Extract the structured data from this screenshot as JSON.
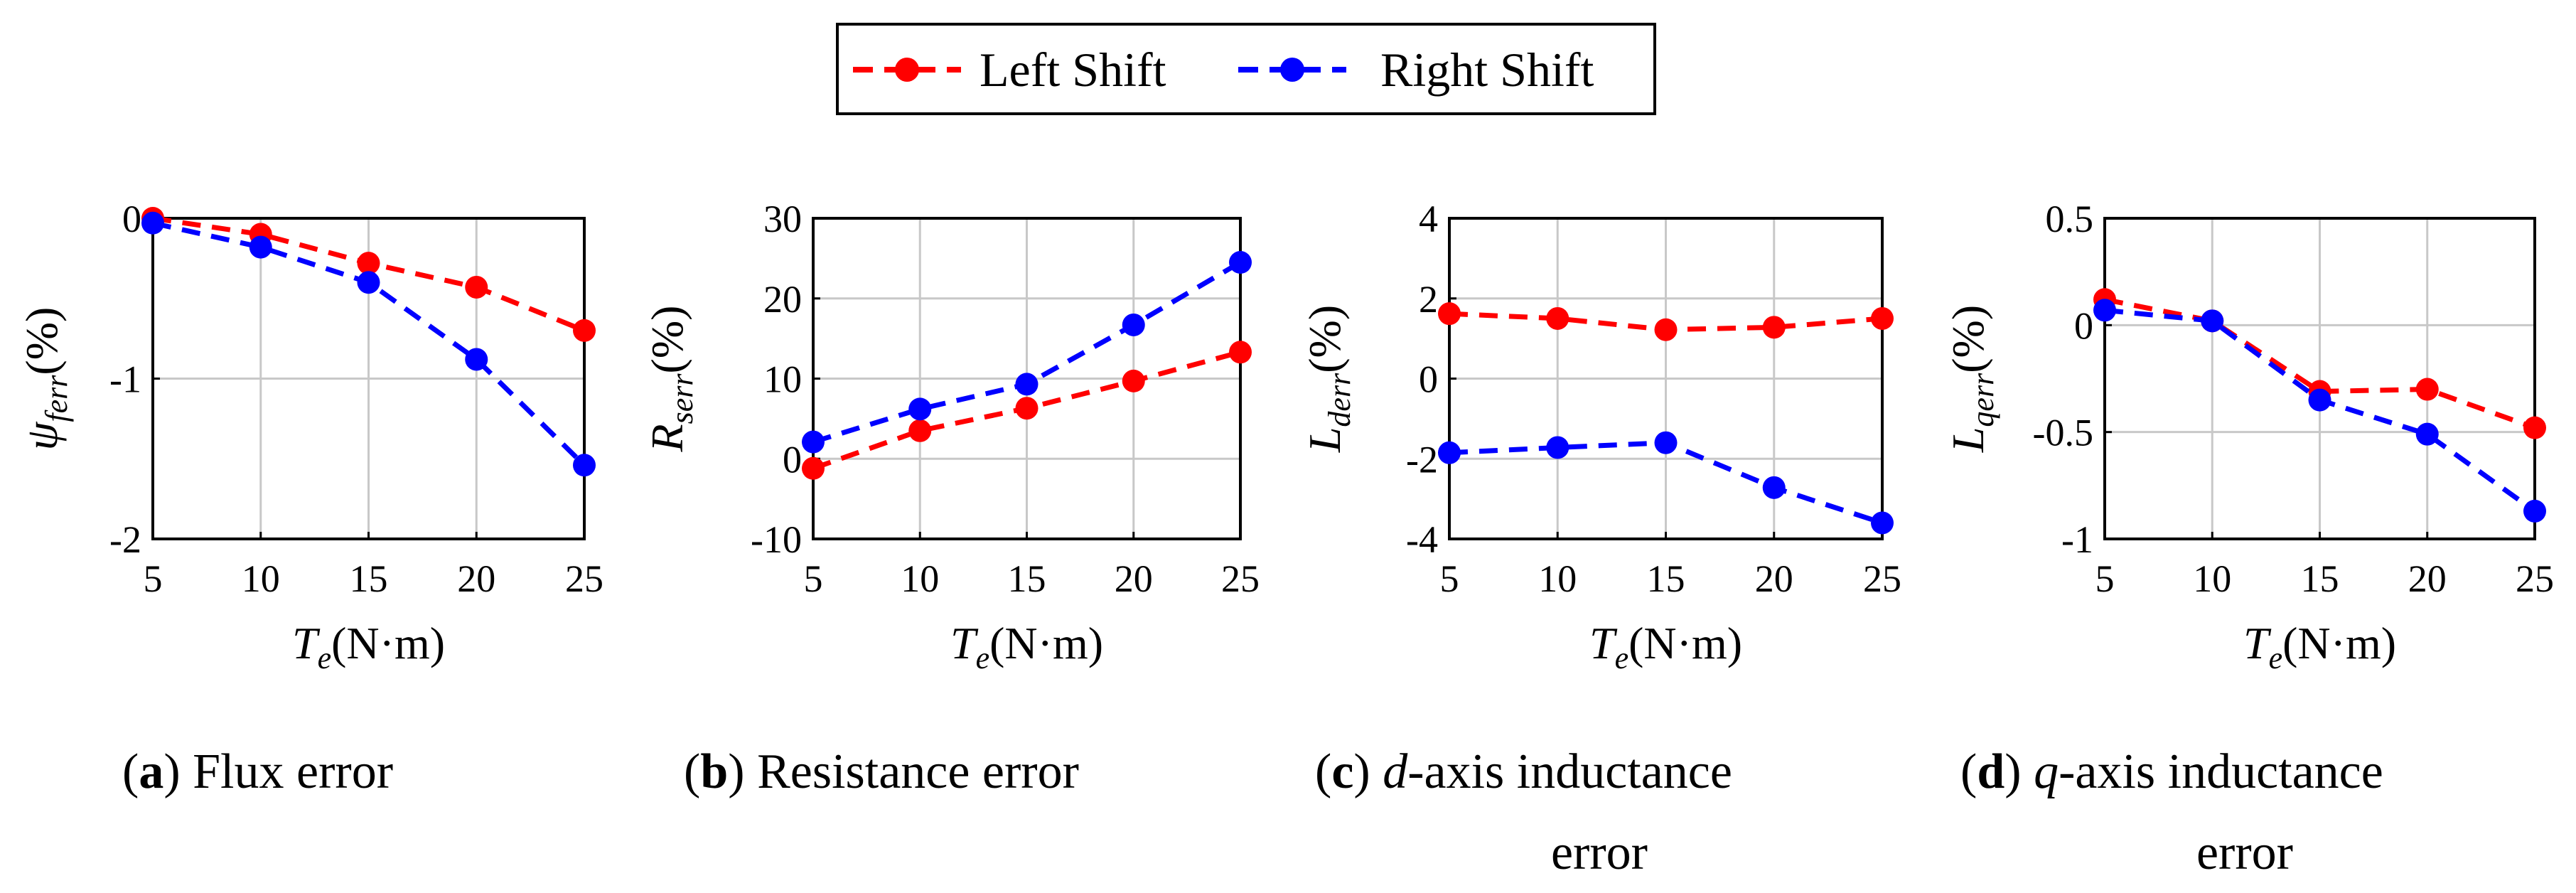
{
  "legend": {
    "entries": [
      {
        "label": "Left Shift",
        "color": "#ff0000"
      },
      {
        "label": "Right Shift",
        "color": "#0000ff"
      }
    ]
  },
  "chart_data": [
    {
      "type": "line",
      "id": "a",
      "x": [
        5,
        10,
        15,
        20,
        25
      ],
      "xticks": [
        5,
        10,
        15,
        20,
        25
      ],
      "xticklabels": [
        "5",
        "10",
        "15",
        "20",
        "25"
      ],
      "xlim": [
        5,
        25
      ],
      "ylim": [
        -2,
        0
      ],
      "yticks": [
        -2,
        -1,
        0
      ],
      "yticklabels": [
        "-2",
        "-1",
        "0"
      ],
      "grid": true,
      "ylabel": {
        "main": "ψ",
        "sub": "ferr",
        "unit": "(%)"
      },
      "xlabel": {
        "main": "T",
        "sub": "e",
        "unit": "(N·m)"
      },
      "series": [
        {
          "name": "Left Shift",
          "color": "#ff0000",
          "values": [
            0.0,
            -0.1,
            -0.28,
            -0.43,
            -0.7
          ]
        },
        {
          "name": "Right Shift",
          "color": "#0000ff",
          "values": [
            -0.03,
            -0.18,
            -0.4,
            -0.88,
            -1.54
          ]
        }
      ],
      "caption": {
        "bold": "a",
        "text": " Flux error",
        "line2": ""
      }
    },
    {
      "type": "line",
      "id": "b",
      "x": [
        5,
        10,
        15,
        20,
        25
      ],
      "xticks": [
        5,
        10,
        15,
        20,
        25
      ],
      "xticklabels": [
        "5",
        "10",
        "15",
        "20",
        "25"
      ],
      "xlim": [
        5,
        25
      ],
      "ylim": [
        -10,
        30
      ],
      "yticks": [
        -10,
        0,
        10,
        20,
        30
      ],
      "yticklabels": [
        "-10",
        "0",
        "10",
        "20",
        "30"
      ],
      "grid": true,
      "ylabel": {
        "main": "R",
        "sub": "serr",
        "unit": "(%)"
      },
      "xlabel": {
        "main": "T",
        "sub": "e",
        "unit": "(N·m)"
      },
      "series": [
        {
          "name": "Left Shift",
          "color": "#ff0000",
          "values": [
            -1.2,
            3.5,
            6.3,
            9.7,
            13.3
          ]
        },
        {
          "name": "Right Shift",
          "color": "#0000ff",
          "values": [
            2.1,
            6.2,
            9.3,
            16.7,
            24.5
          ]
        }
      ],
      "caption": {
        "bold": "b",
        "text": " Resistance error",
        "line2": ""
      }
    },
    {
      "type": "line",
      "id": "c",
      "x": [
        5,
        10,
        15,
        20,
        25
      ],
      "xticks": [
        5,
        10,
        15,
        20,
        25
      ],
      "xticklabels": [
        "5",
        "10",
        "15",
        "20",
        "25"
      ],
      "xlim": [
        5,
        25
      ],
      "ylim": [
        -4,
        4
      ],
      "yticks": [
        -4,
        -2,
        0,
        2,
        4
      ],
      "yticklabels": [
        "-4",
        "-2",
        "0",
        "2",
        "4"
      ],
      "grid": true,
      "ylabel": {
        "main": "L",
        "sub": "derr",
        "unit": "(%)"
      },
      "xlabel": {
        "main": "T",
        "sub": "e",
        "unit": "(N·m)"
      },
      "series": [
        {
          "name": "Left Shift",
          "color": "#ff0000",
          "values": [
            1.62,
            1.5,
            1.22,
            1.28,
            1.5
          ]
        },
        {
          "name": "Right Shift",
          "color": "#0000ff",
          "values": [
            -1.85,
            -1.72,
            -1.6,
            -2.72,
            -3.6
          ]
        }
      ],
      "caption": {
        "bold": "c",
        "ital": "d",
        "text": "-axis inductance",
        "line2": "error"
      }
    },
    {
      "type": "line",
      "id": "d",
      "x": [
        5,
        10,
        15,
        20,
        25
      ],
      "xticks": [
        5,
        10,
        15,
        20,
        25
      ],
      "xticklabels": [
        "5",
        "10",
        "15",
        "20",
        "25"
      ],
      "xlim": [
        5,
        25
      ],
      "ylim": [
        -1,
        0.5
      ],
      "yticks": [
        -1,
        -0.5,
        0,
        0.5
      ],
      "yticklabels": [
        "-1",
        "-0.5",
        "0",
        "0.5"
      ],
      "grid": true,
      "ylabel": {
        "main": "L",
        "sub": "qerr",
        "unit": "(%)"
      },
      "xlabel": {
        "main": "T",
        "sub": "e",
        "unit": "(N·m)"
      },
      "series": [
        {
          "name": "Left Shift",
          "color": "#ff0000",
          "values": [
            0.12,
            0.02,
            -0.31,
            -0.3,
            -0.48
          ]
        },
        {
          "name": "Right Shift",
          "color": "#0000ff",
          "values": [
            0.07,
            0.02,
            -0.35,
            -0.51,
            -0.87
          ]
        }
      ],
      "caption": {
        "bold": "d",
        "ital": "q",
        "text": "-axis inductance",
        "line2": "error"
      }
    }
  ]
}
